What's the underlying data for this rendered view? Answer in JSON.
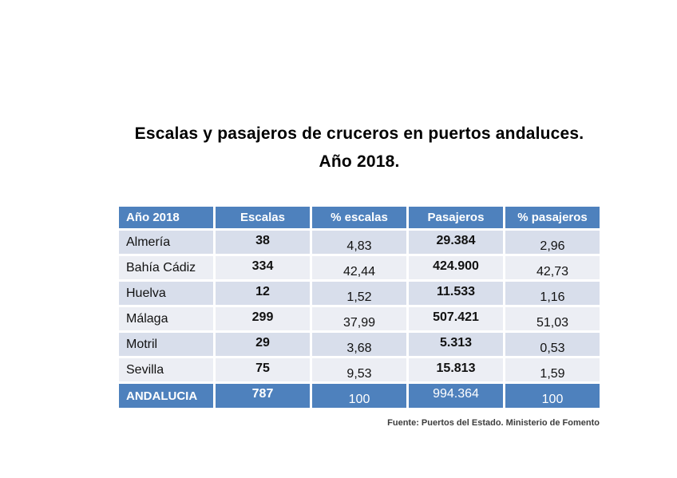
{
  "title": {
    "line1": "Escalas y pasajeros de cruceros en puertos andaluces.",
    "line2": "Año 2018."
  },
  "table": {
    "headers": {
      "col1": "Año 2018",
      "col2": "Escalas",
      "col3": "% escalas",
      "col4": "Pasajeros",
      "col5": "% pasajeros"
    },
    "rows": [
      {
        "port": "Almería",
        "escalas": "38",
        "pct_escalas": "4,83",
        "pasajeros": "29.384",
        "pct_pasajeros": "2,96"
      },
      {
        "port": "Bahía Cádiz",
        "escalas": "334",
        "pct_escalas": "42,44",
        "pasajeros": "424.900",
        "pct_pasajeros": "42,73"
      },
      {
        "port": "Huelva",
        "escalas": "12",
        "pct_escalas": "1,52",
        "pasajeros": "11.533",
        "pct_pasajeros": "1,16"
      },
      {
        "port": "Málaga",
        "escalas": "299",
        "pct_escalas": "37,99",
        "pasajeros": "507.421",
        "pct_pasajeros": "51,03"
      },
      {
        "port": "Motril",
        "escalas": "29",
        "pct_escalas": "3,68",
        "pasajeros": "5.313",
        "pct_pasajeros": "0,53"
      },
      {
        "port": "Sevilla",
        "escalas": "75",
        "pct_escalas": "9,53",
        "pasajeros": "15.813",
        "pct_pasajeros": "1,59"
      }
    ],
    "total": {
      "port": "ANDALUCIA",
      "escalas": "787",
      "pct_escalas": "100",
      "pasajeros": "994.364",
      "pct_pasajeros": "100"
    }
  },
  "source": "Fuente: Puertos del Estado. Ministerio de Fomento",
  "colors": {
    "header_blue": "#4e81bd",
    "row_band_dark": "#d8deeb",
    "row_band_light": "#eceef4",
    "header_text": "#ffffff",
    "body_text": "#111111"
  },
  "chart_data": {
    "type": "table",
    "title": "Escalas y pasajeros de cruceros en puertos andaluces. Año 2018.",
    "columns": [
      "Año 2018",
      "Escalas",
      "% escalas",
      "Pasajeros",
      "% pasajeros"
    ],
    "rows": [
      [
        "Almería",
        38,
        4.83,
        29384,
        2.96
      ],
      [
        "Bahía Cádiz",
        334,
        42.44,
        424900,
        42.73
      ],
      [
        "Huelva",
        12,
        1.52,
        11533,
        1.16
      ],
      [
        "Málaga",
        299,
        37.99,
        507421,
        51.03
      ],
      [
        "Motril",
        29,
        3.68,
        5313,
        0.53
      ],
      [
        "Sevilla",
        75,
        9.53,
        15813,
        1.59
      ],
      [
        "ANDALUCIA",
        787,
        100,
        994364,
        100
      ]
    ],
    "source": "Fuente: Puertos del Estado. Ministerio de Fomento"
  }
}
